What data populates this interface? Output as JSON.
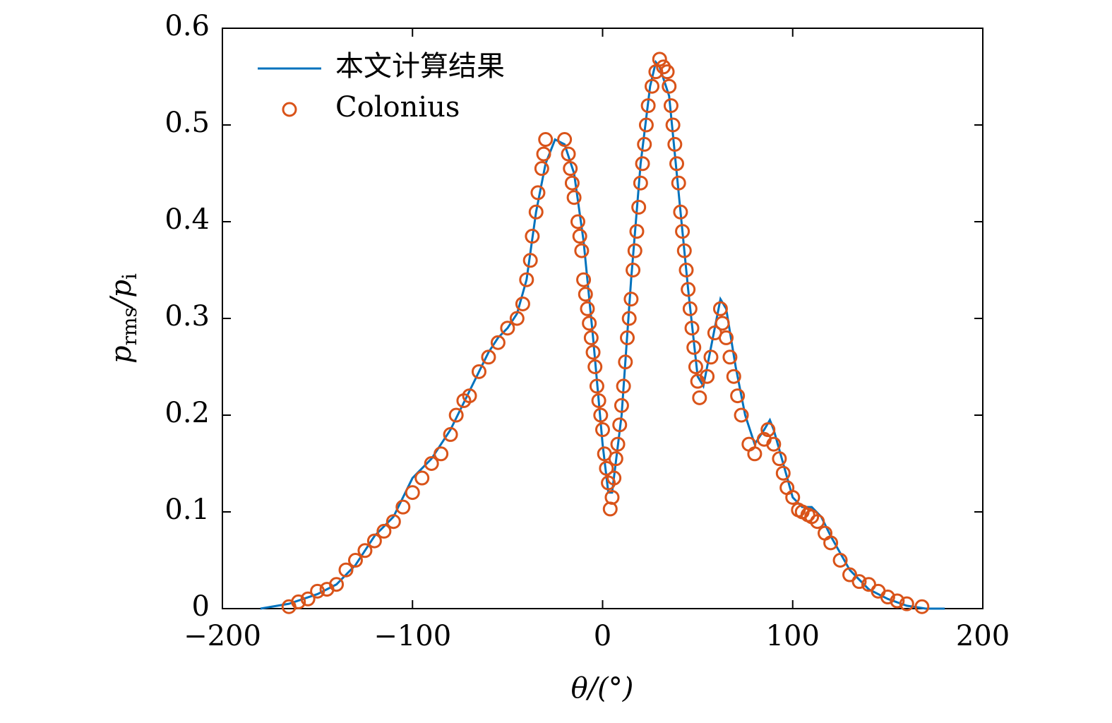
{
  "chart_data": {
    "type": "line",
    "xlabel": "θ/(°)",
    "ylabel": [
      "p",
      "rms",
      "/p",
      "i"
    ],
    "xlim": [
      -200,
      200
    ],
    "xticks": [
      {
        "value": -200,
        "label": "−200"
      },
      {
        "value": -100,
        "label": "−100"
      },
      0,
      100,
      200
    ],
    "ylim": [
      0,
      0.6
    ],
    "yticks": [
      0,
      0.1,
      0.2,
      0.3,
      0.4,
      0.5,
      0.6
    ],
    "legend": "upper left",
    "grid": false,
    "series": [
      {
        "name": "本文计算结果",
        "mode": "line",
        "color": "#0072bd",
        "x": [
          -180,
          -165,
          -150,
          -140,
          -130,
          -120,
          -115,
          -110,
          -100,
          -95,
          -90,
          -80,
          -70,
          -60,
          -55,
          -50,
          -45,
          -40,
          -35,
          -30,
          -25,
          -20,
          -15,
          -10,
          -5,
          0,
          3,
          5,
          10,
          15,
          20,
          25,
          28,
          30,
          35,
          40,
          45,
          50,
          53,
          57,
          62,
          65,
          70,
          75,
          80,
          85,
          88,
          90,
          95,
          100,
          105,
          110,
          115,
          120,
          130,
          140,
          150,
          160,
          170,
          180
        ],
        "values": [
          0.0,
          0.005,
          0.015,
          0.025,
          0.045,
          0.075,
          0.085,
          0.095,
          0.135,
          0.145,
          0.155,
          0.185,
          0.225,
          0.265,
          0.28,
          0.29,
          0.305,
          0.34,
          0.41,
          0.46,
          0.485,
          0.48,
          0.45,
          0.38,
          0.28,
          0.17,
          0.12,
          0.12,
          0.2,
          0.34,
          0.46,
          0.54,
          0.565,
          0.56,
          0.53,
          0.43,
          0.33,
          0.24,
          0.23,
          0.27,
          0.32,
          0.31,
          0.25,
          0.2,
          0.17,
          0.185,
          0.195,
          0.185,
          0.15,
          0.115,
          0.105,
          0.105,
          0.095,
          0.075,
          0.04,
          0.02,
          0.01,
          0.003,
          0.0,
          0.0
        ]
      },
      {
        "name": "Colonius",
        "mode": "markers",
        "color": "#d95319",
        "x": [
          -165,
          -160,
          -155,
          -150,
          -145,
          -140,
          -135,
          -130,
          -125,
          -120,
          -115,
          -110,
          -105,
          -100,
          -95,
          -90,
          -85,
          -80,
          -77,
          -73,
          -70,
          -65,
          -60,
          -55,
          -50,
          -45,
          -42,
          -40,
          -38,
          -37,
          -35,
          -34,
          -32,
          -31,
          -30,
          -20,
          -18,
          -17,
          -16,
          -15,
          -13,
          -12,
          -11,
          -10,
          -9,
          -8,
          -7,
          -6,
          -5,
          -4,
          -3,
          -2,
          -1,
          0,
          1,
          2,
          3,
          4,
          5,
          6,
          7,
          8,
          9,
          10,
          11,
          12,
          13,
          14,
          15,
          16,
          17,
          18,
          19,
          20,
          21,
          22,
          23,
          24,
          26,
          28,
          30,
          32,
          34,
          35,
          36,
          37,
          38,
          39,
          40,
          41,
          42,
          43,
          44,
          45,
          46,
          47,
          48,
          49,
          50,
          51,
          55,
          57,
          59,
          62,
          63,
          65,
          67,
          69,
          71,
          73,
          77,
          80,
          85,
          87,
          90,
          93,
          95,
          97,
          100,
          103,
          105,
          108,
          110,
          113,
          117,
          120,
          125,
          130,
          135,
          140,
          145,
          150,
          155,
          160,
          168
        ],
        "values": [
          0.002,
          0.007,
          0.01,
          0.018,
          0.02,
          0.025,
          0.04,
          0.05,
          0.06,
          0.07,
          0.08,
          0.09,
          0.105,
          0.12,
          0.135,
          0.15,
          0.16,
          0.18,
          0.2,
          0.215,
          0.22,
          0.245,
          0.26,
          0.275,
          0.29,
          0.3,
          0.315,
          0.34,
          0.36,
          0.385,
          0.41,
          0.43,
          0.455,
          0.47,
          0.485,
          0.485,
          0.47,
          0.455,
          0.44,
          0.425,
          0.4,
          0.385,
          0.37,
          0.34,
          0.325,
          0.31,
          0.295,
          0.28,
          0.265,
          0.25,
          0.23,
          0.215,
          0.2,
          0.185,
          0.16,
          0.145,
          0.13,
          0.103,
          0.115,
          0.135,
          0.155,
          0.17,
          0.19,
          0.21,
          0.23,
          0.255,
          0.28,
          0.3,
          0.32,
          0.35,
          0.37,
          0.39,
          0.415,
          0.44,
          0.46,
          0.48,
          0.5,
          0.52,
          0.54,
          0.555,
          0.568,
          0.56,
          0.555,
          0.54,
          0.52,
          0.5,
          0.48,
          0.46,
          0.44,
          0.41,
          0.39,
          0.37,
          0.35,
          0.33,
          0.31,
          0.29,
          0.27,
          0.25,
          0.235,
          0.218,
          0.24,
          0.26,
          0.285,
          0.31,
          0.295,
          0.28,
          0.26,
          0.24,
          0.22,
          0.2,
          0.17,
          0.16,
          0.175,
          0.185,
          0.17,
          0.155,
          0.14,
          0.125,
          0.115,
          0.102,
          0.1,
          0.097,
          0.095,
          0.09,
          0.078,
          0.068,
          0.05,
          0.035,
          0.028,
          0.025,
          0.018,
          0.012,
          0.008,
          0.005,
          0.002
        ]
      }
    ]
  }
}
